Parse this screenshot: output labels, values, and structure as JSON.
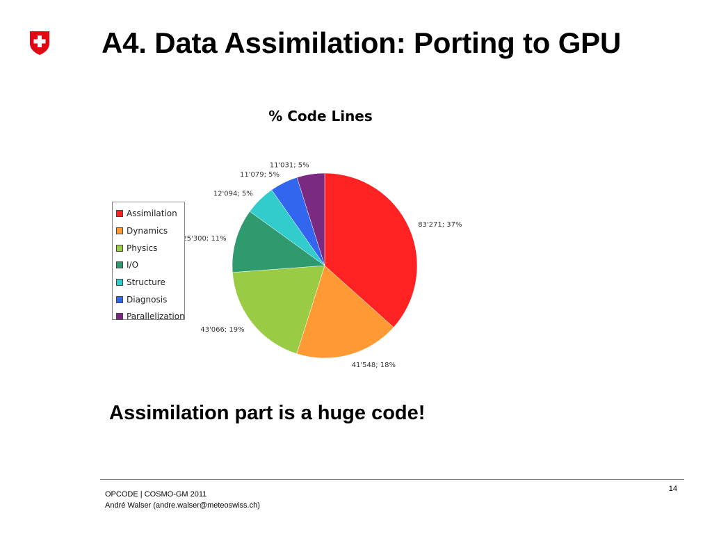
{
  "slide": {
    "title": "A4. Data Assimilation: Porting to GPU",
    "message": "Assimilation part is a huge code!",
    "page_number": "14",
    "footer": {
      "line1": "OPCODE | COSMO-GM 2011",
      "line2": "André Walser (andre.walser@meteoswiss.ch)"
    },
    "logo": {
      "icon": "swiss-cross-shield-icon",
      "color": "#e30613"
    }
  },
  "chart_data": {
    "type": "pie",
    "title": "% Code Lines",
    "legend_position": "left",
    "categories": [
      "Assimilation",
      "Dynamics",
      "Physics",
      "I/O",
      "Structure",
      "Diagnosis",
      "Parallelization"
    ],
    "values": [
      83271,
      41548,
      43066,
      25300,
      12094,
      11079,
      11031
    ],
    "percent": [
      37,
      18,
      19,
      11,
      5,
      5,
      5
    ],
    "labels": [
      "83'271; 37%",
      "41'548; 18%",
      "43'066; 19%",
      "25'300; 11%",
      "12'094; 5%",
      "11'079; 5%",
      "11'031; 5%"
    ],
    "colors": [
      "#ff2222",
      "#ff9933",
      "#99cc44",
      "#2e9a6e",
      "#33cccc",
      "#3366ee",
      "#7a2a80"
    ]
  }
}
